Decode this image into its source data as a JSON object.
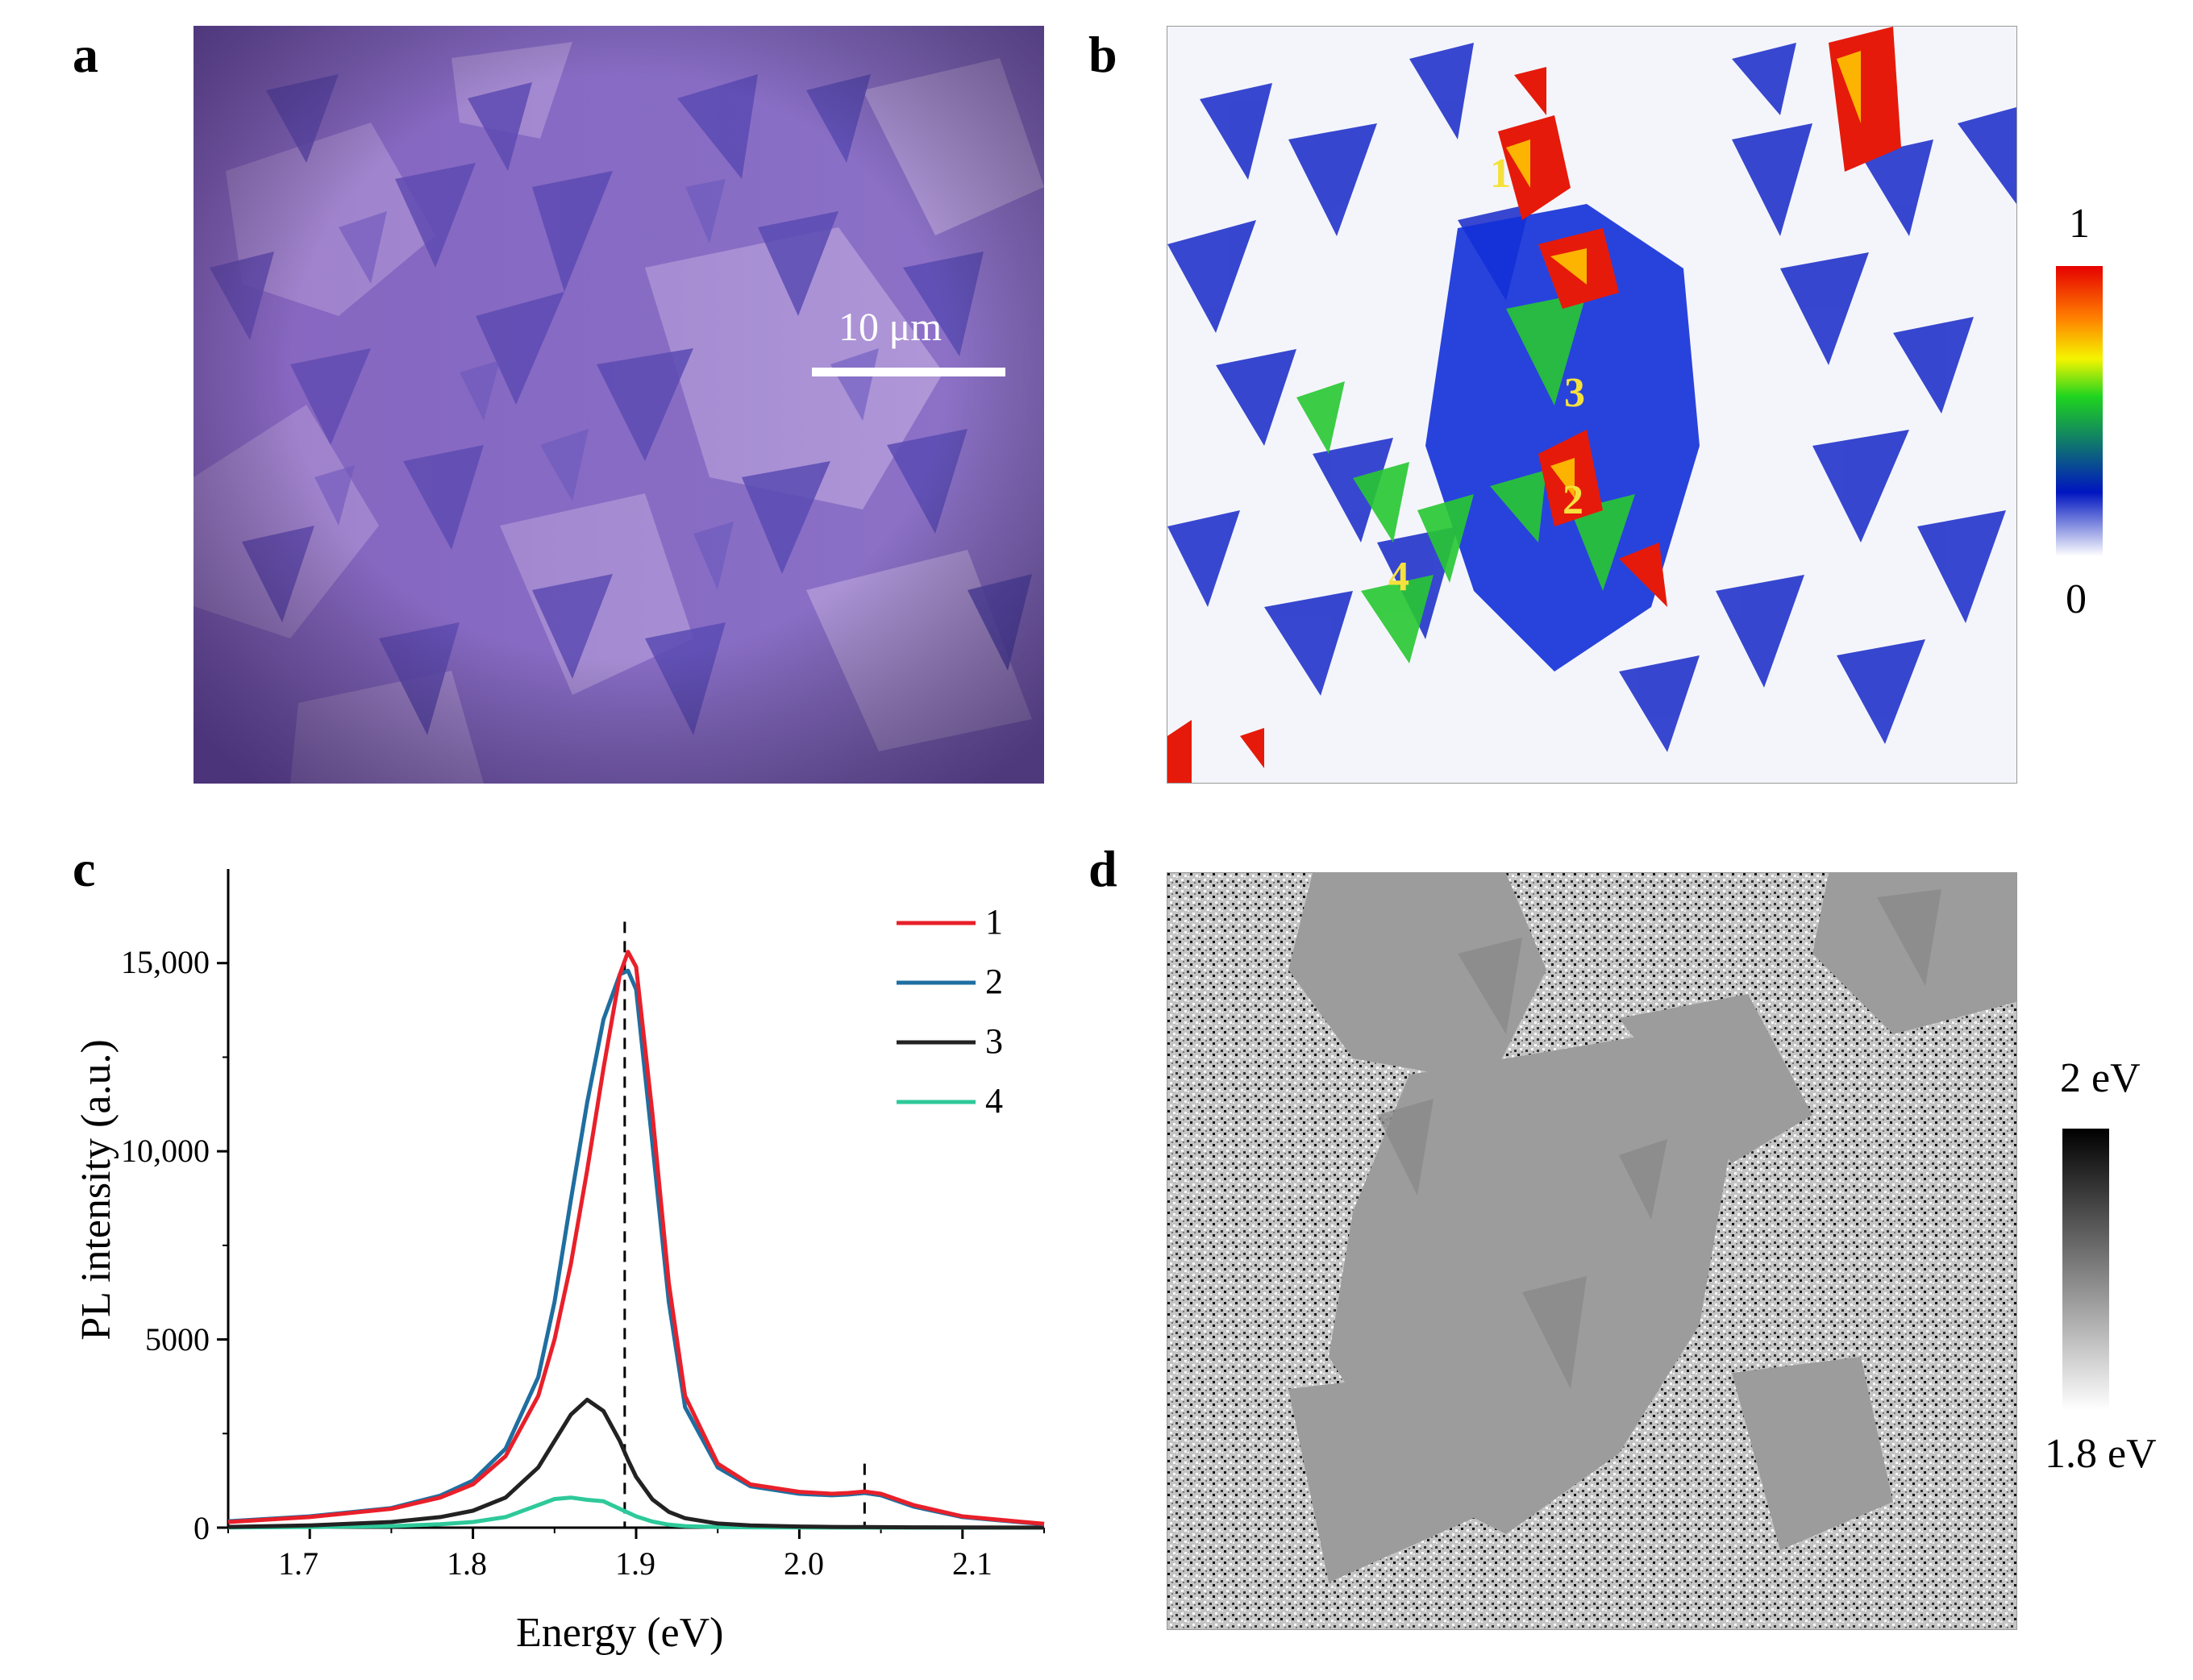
{
  "panels": {
    "a": {
      "label": "a",
      "scale_bar_text": "10 μm",
      "colors": {
        "bg": "#8b6fc7",
        "film_light": "#b59bd8",
        "flake_dark": "#5a4bb2"
      }
    },
    "b": {
      "label": "b",
      "spots": [
        "1",
        "2",
        "3",
        "4"
      ],
      "colorbar": {
        "max_label": "1",
        "min_label": "0",
        "colors": [
          "#ffffff",
          "#0015c0",
          "#1fd41f",
          "#f5f500",
          "#ff8000",
          "#e60000"
        ]
      }
    },
    "c": {
      "label": "c"
    },
    "d": {
      "label": "d",
      "colorbar": {
        "max_label": "2 eV",
        "min_label": "1.8 eV",
        "colors": [
          "#000000",
          "#ffffff"
        ]
      }
    }
  },
  "chart_data": {
    "type": "line",
    "title": "",
    "xlabel": "Energy (eV)",
    "ylabel": "PL intensity (a.u.)",
    "xlim": [
      1.65,
      2.15
    ],
    "ylim": [
      0,
      17500
    ],
    "xticks": [
      1.7,
      1.8,
      1.9,
      2.0,
      2.1
    ],
    "xtick_labels": [
      "1.7",
      "1.8",
      "1.9",
      "2.0",
      "2.1"
    ],
    "yticks": [
      0,
      5000,
      10000,
      15000
    ],
    "ytick_labels": [
      "0",
      "5000",
      "10,000",
      "15,000"
    ],
    "reference_lines": [
      1.893,
      2.04
    ],
    "legend_position": "top-right",
    "x": [
      1.65,
      1.7,
      1.75,
      1.78,
      1.8,
      1.82,
      1.84,
      1.85,
      1.86,
      1.87,
      1.88,
      1.89,
      1.895,
      1.9,
      1.91,
      1.92,
      1.93,
      1.95,
      1.97,
      2.0,
      2.02,
      2.03,
      2.04,
      2.05,
      2.07,
      2.1,
      2.15
    ],
    "series": [
      {
        "name": "1",
        "color": "#e8202a",
        "values": [
          150,
          280,
          500,
          800,
          1150,
          1900,
          3500,
          5000,
          7000,
          9500,
          12200,
          14700,
          15300,
          14900,
          11000,
          6500,
          3500,
          1700,
          1150,
          950,
          900,
          920,
          960,
          900,
          600,
          300,
          100
        ]
      },
      {
        "name": "2",
        "color": "#1f6ea0",
        "values": [
          170,
          300,
          520,
          850,
          1250,
          2100,
          4000,
          6000,
          8700,
          11300,
          13500,
          14700,
          14800,
          14300,
          10200,
          6000,
          3200,
          1600,
          1100,
          900,
          860,
          880,
          920,
          860,
          560,
          280,
          90
        ]
      },
      {
        "name": "3",
        "color": "#222222",
        "values": [
          20,
          60,
          150,
          280,
          450,
          800,
          1600,
          2300,
          3000,
          3400,
          3100,
          2300,
          1800,
          1350,
          750,
          420,
          250,
          110,
          60,
          30,
          20,
          18,
          15,
          12,
          8,
          5,
          2
        ]
      },
      {
        "name": "4",
        "color": "#2ec99a",
        "values": [
          5,
          15,
          40,
          90,
          150,
          280,
          600,
          760,
          800,
          740,
          700,
          500,
          400,
          300,
          160,
          80,
          40,
          15,
          8,
          4,
          3,
          2,
          2,
          1,
          1,
          0,
          0
        ]
      }
    ]
  }
}
